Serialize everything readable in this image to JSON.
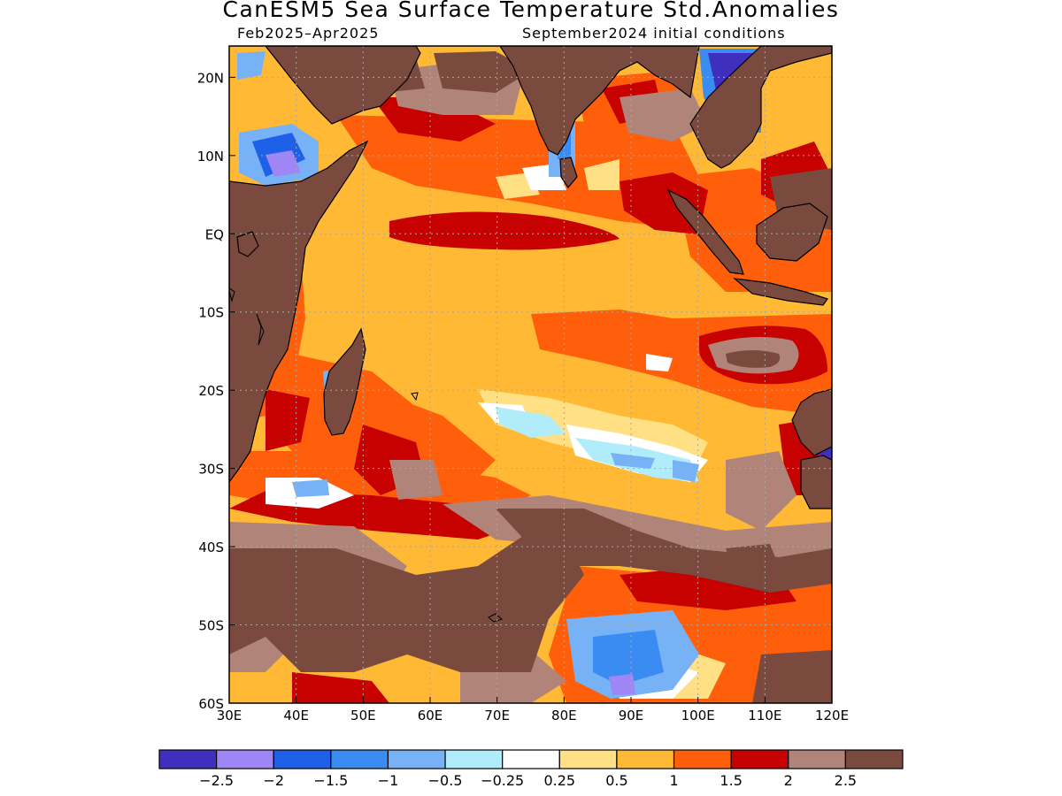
{
  "title": "CanESM5 Sea Surface Temperature Std.Anomalies",
  "subtitle_left": "Feb2025–Apr2025",
  "subtitle_right": "September2024 initial conditions",
  "map": {
    "lon_range": [
      30,
      120
    ],
    "lat_range": [
      -60,
      24
    ],
    "lon_ticks": [
      {
        "value": 30,
        "label": "30E"
      },
      {
        "value": 40,
        "label": "40E"
      },
      {
        "value": 50,
        "label": "50E"
      },
      {
        "value": 60,
        "label": "60E"
      },
      {
        "value": 70,
        "label": "70E"
      },
      {
        "value": 80,
        "label": "80E"
      },
      {
        "value": 90,
        "label": "90E"
      },
      {
        "value": 100,
        "label": "100E"
      },
      {
        "value": 110,
        "label": "110E"
      },
      {
        "value": 120,
        "label": "120E"
      }
    ],
    "lat_ticks": [
      {
        "value": 20,
        "label": "20N"
      },
      {
        "value": 10,
        "label": "10N"
      },
      {
        "value": 0,
        "label": "EQ"
      },
      {
        "value": -10,
        "label": "10S"
      },
      {
        "value": -20,
        "label": "20S"
      },
      {
        "value": -30,
        "label": "30S"
      },
      {
        "value": -40,
        "label": "40S"
      },
      {
        "value": -50,
        "label": "50S"
      },
      {
        "value": -60,
        "label": "60S"
      }
    ],
    "grid": true,
    "land_color": "#7a4a3f"
  },
  "colorbar": {
    "colors": [
      "#3f2fbf",
      "#9f86f7",
      "#1f60e8",
      "#3b8cf2",
      "#78b2f6",
      "#b0ecfa",
      "#ffffff",
      "#ffe084",
      "#ffb935",
      "#ff5f0a",
      "#c70000",
      "#b08478",
      "#7a4a3f"
    ],
    "labels": [
      "−2.5",
      "−2",
      "−1.5",
      "−1",
      "−0.5",
      "−0.25",
      "0.25",
      "0.5",
      "1",
      "1.5",
      "2",
      "2.5"
    ]
  }
}
